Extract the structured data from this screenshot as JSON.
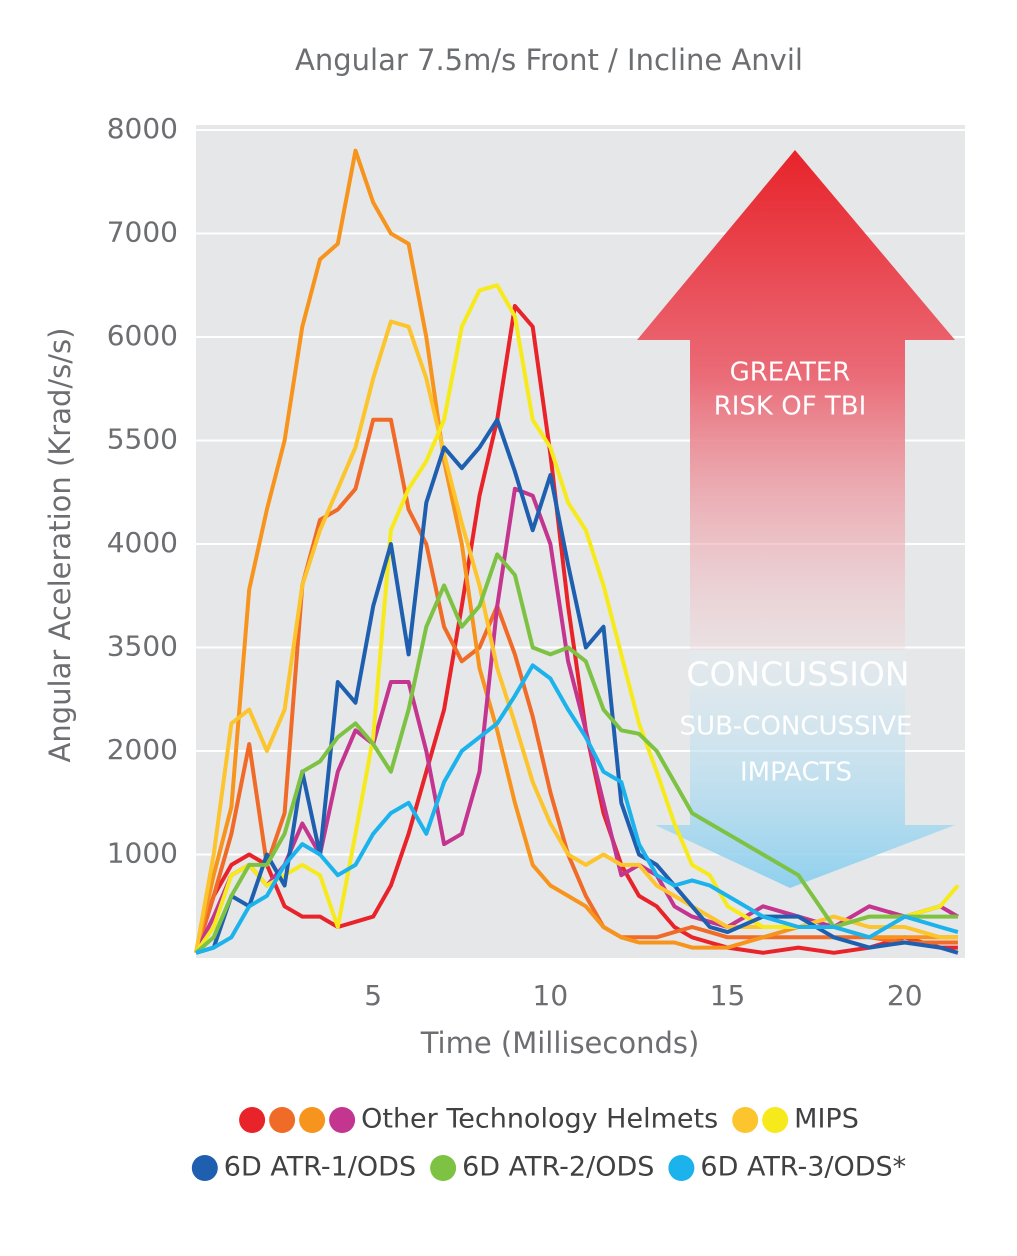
{
  "chart_data": {
    "type": "line",
    "title": "Angular 7.5m/s Front / Incline Anvil",
    "xlabel": "Time (Milliseconds)",
    "ylabel": "Angular Aceleration (Krad/s/s)",
    "xlim": [
      0,
      21.7
    ],
    "xticks": [
      5,
      10,
      15,
      20
    ],
    "ylim": [
      0,
      8000
    ],
    "yticks": [
      1000,
      2000,
      3500,
      4000,
      5500,
      6000,
      7000,
      8000
    ],
    "grid": true,
    "x": [
      0,
      0.5,
      1,
      1.5,
      2,
      2.5,
      3,
      3.5,
      4,
      4.5,
      5,
      5.5,
      6,
      6.5,
      7,
      7.5,
      8,
      8.5,
      9,
      9.5,
      10,
      10.5,
      11,
      11.5,
      12,
      12.5,
      13,
      13.5,
      14,
      14.5,
      15,
      16,
      17,
      18,
      19,
      20,
      21,
      21.5
    ],
    "series": [
      {
        "name": "Other Technology Helmets",
        "lines": [
          {
            "color": "#e8232a",
            "values": [
              50,
              600,
              900,
              1000,
              900,
              500,
              400,
              400,
              300,
              350,
              400,
              700,
              1200,
              1800,
              2600,
              3700,
              4700,
              5600,
              6300,
              6100,
              5300,
              3700,
              2300,
              1400,
              900,
              600,
              500,
              300,
              200,
              150,
              100,
              50,
              100,
              50,
              100,
              200,
              100,
              100
            ]
          },
          {
            "color": "#f06a28",
            "values": [
              50,
              600,
              1200,
              2100,
              900,
              1400,
              3800,
              4350,
              4500,
              4800,
              5600,
              5600,
              4500,
              4000,
              3600,
              3300,
              3500,
              3700,
              3400,
              2500,
              1600,
              1000,
              600,
              300,
              200,
              200,
              200,
              250,
              300,
              250,
              200,
              200,
              200,
              200,
              200,
              150,
              150,
              150
            ]
          },
          {
            "color": "#f7941d",
            "values": [
              50,
              800,
              1460,
              3780,
              4500,
              5500,
              6100,
              6750,
              6900,
              7800,
              7300,
              7000,
              6900,
              6000,
              5200,
              4000,
              3200,
              2300,
              1500,
              900,
              700,
              600,
              500,
              300,
              200,
              150,
              150,
              150,
              100,
              100,
              100,
              200,
              300,
              300,
              200,
              200,
              200,
              200
            ]
          },
          {
            "color": "#c4358f",
            "values": [
              50,
              400,
              800,
              900,
              700,
              900,
              1300,
              1000,
              1800,
              2300,
              2100,
              3000,
              3000,
              2000,
              1100,
              1200,
              1800,
              3700,
              4800,
              4700,
              4000,
              3300,
              2300,
              1500,
              800,
              900,
              800,
              500,
              400,
              350,
              300,
              500,
              400,
              300,
              500,
              400,
              500,
              400
            ]
          }
        ]
      },
      {
        "name": "MIPS",
        "lines": [
          {
            "color": "#fcc42d",
            "values": [
              50,
              1000,
              2400,
              2600,
              2000,
              2600,
              3800,
              4200,
              4800,
              5400,
              5800,
              6150,
              6100,
              5800,
              5300,
              4300,
              3800,
              3200,
              2400,
              1700,
              1300,
              1000,
              900,
              1000,
              900,
              900,
              700,
              600,
              500,
              400,
              300,
              300,
              300,
              400,
              300,
              300,
              200,
              200
            ]
          },
          {
            "color": "#f6ea1c",
            "values": [
              50,
              300,
              800,
              900,
              700,
              800,
              900,
              800,
              300,
              1200,
              2200,
              4200,
              4800,
              5200,
              5600,
              6100,
              6450,
              6500,
              6200,
              5600,
              5400,
              4600,
              4200,
              3800,
              3400,
              2400,
              1800,
              1300,
              900,
              800,
              500,
              300,
              300,
              300,
              400,
              400,
              500,
              700
            ]
          }
        ]
      },
      {
        "name": "6D ATR-1/ODS",
        "lines": [
          {
            "color": "#1f5fb0",
            "values": [
              50,
              100,
              600,
              500,
              1000,
              700,
              1800,
              1000,
              3000,
              2700,
              3700,
              4000,
              3400,
              4600,
              5400,
              5100,
              5400,
              5600,
              5050,
              4200,
              5000,
              3900,
              3500,
              3600,
              1500,
              1000,
              900,
              700,
              500,
              300,
              250,
              400,
              400,
              200,
              100,
              150,
              100,
              50
            ]
          }
        ]
      },
      {
        "name": "6D ATR-2/ODS",
        "lines": [
          {
            "color": "#7dc242",
            "values": [
              50,
              200,
              600,
              900,
              900,
              1200,
              1800,
              1900,
              2200,
              2400,
              2100,
              1800,
              2600,
              3600,
              3800,
              3600,
              3700,
              3950,
              3850,
              3500,
              3400,
              3500,
              3300,
              2600,
              2300,
              2250,
              2000,
              1700,
              1400,
              1300,
              1200,
              1000,
              800,
              300,
              400,
              400,
              400,
              400
            ]
          }
        ]
      },
      {
        "name": "6D ATR-3/ODS*",
        "lines": [
          {
            "color": "#1cb3ec",
            "values": [
              50,
              100,
              200,
              500,
              600,
              900,
              1100,
              1000,
              800,
              900,
              1200,
              1400,
              1500,
              1200,
              1700,
              2000,
              2200,
              2400,
              2800,
              3240,
              3050,
              2600,
              2200,
              1800,
              1700,
              1100,
              800,
              700,
              750,
              700,
              600,
              400,
              300,
              300,
              200,
              400,
              300,
              250
            ]
          }
        ]
      }
    ],
    "annotations": [
      "GREATER",
      "RISK OF TBI",
      "CONCUSSION",
      "SUB-CONCUSSIVE",
      "IMPACTS"
    ]
  }
}
